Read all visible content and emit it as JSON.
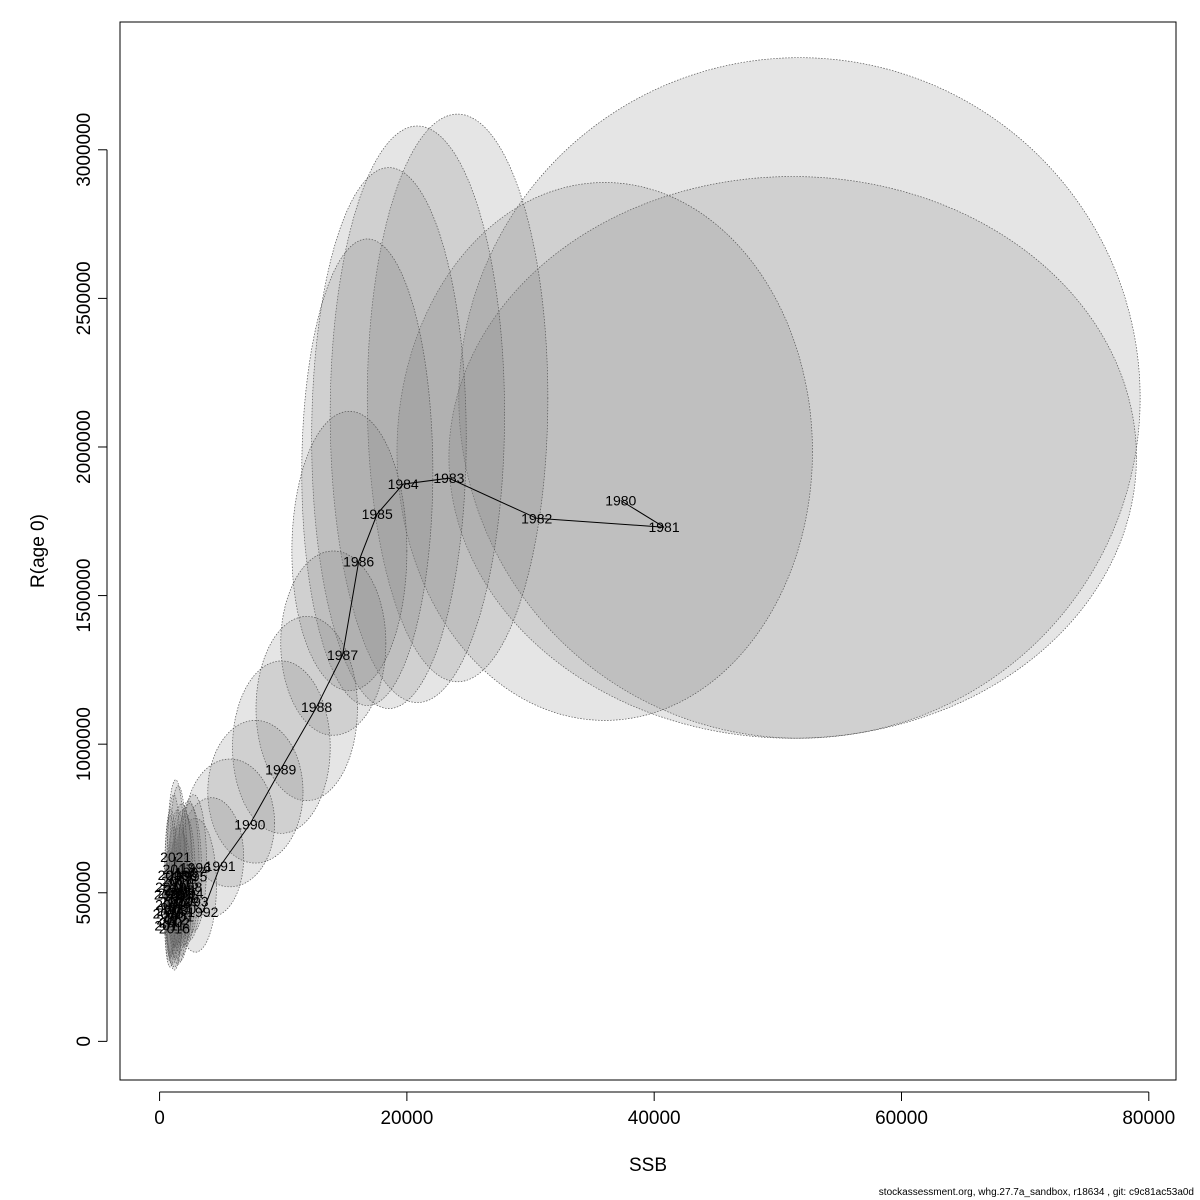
{
  "footer": "stockassessment.org, whg.27.7a_sandbox, r18634 , git: c9c81ac53a0d",
  "chart_data": {
    "type": "scatter",
    "title": "",
    "xlabel": "SSB",
    "ylabel": "R(age 0)",
    "xlim": [
      -3200,
      82200
    ],
    "ylim": [
      -130000,
      3430000
    ],
    "xticks": [
      0,
      20000,
      40000,
      60000,
      80000
    ],
    "yticks": [
      0,
      500000,
      1000000,
      1500000,
      2000000,
      2500000,
      3000000
    ],
    "x_tick_labels": [
      "0",
      "20000",
      "40000",
      "60000",
      "80000"
    ],
    "y_tick_labels": [
      "0",
      "500000",
      "1000000",
      "1500000",
      "2000000",
      "2500000",
      "3000000"
    ],
    "grid": false,
    "legend": "none",
    "colors": {
      "labels": "#ff0000",
      "line": "#000000",
      "ellipse_fill": "#7f7f7f",
      "ellipse_stroke": "#555555"
    },
    "points": [
      {
        "label": "1980",
        "x": 37300,
        "y": 1820000
      },
      {
        "label": "1981",
        "x": 40800,
        "y": 1730000
      },
      {
        "label": "1982",
        "x": 30500,
        "y": 1760000
      },
      {
        "label": "1983",
        "x": 23400,
        "y": 1895000
      },
      {
        "label": "1984",
        "x": 19700,
        "y": 1875000
      },
      {
        "label": "1985",
        "x": 17600,
        "y": 1775000
      },
      {
        "label": "1986",
        "x": 16100,
        "y": 1615000
      },
      {
        "label": "1987",
        "x": 14800,
        "y": 1300000
      },
      {
        "label": "1988",
        "x": 12700,
        "y": 1125000
      },
      {
        "label": "1989",
        "x": 9800,
        "y": 915000
      },
      {
        "label": "1990",
        "x": 7300,
        "y": 730000
      },
      {
        "label": "1991",
        "x": 4900,
        "y": 590000
      },
      {
        "label": "1992",
        "x": 3500,
        "y": 435000
      },
      {
        "label": "1993",
        "x": 2700,
        "y": 470000
      },
      {
        "label": "1994",
        "x": 2300,
        "y": 500000
      },
      {
        "label": "1995",
        "x": 2600,
        "y": 555000
      },
      {
        "label": "1996",
        "x": 2900,
        "y": 585000
      },
      {
        "label": "1997",
        "x": 2500,
        "y": 570000
      },
      {
        "label": "1998",
        "x": 2200,
        "y": 520000
      },
      {
        "label": "1999",
        "x": 1900,
        "y": 480000
      },
      {
        "label": "2000",
        "x": 1700,
        "y": 445000
      },
      {
        "label": "2001",
        "x": 1500,
        "y": 420000
      },
      {
        "label": "2002",
        "x": 1200,
        "y": 400000
      },
      {
        "label": "2003",
        "x": 1000,
        "y": 440000
      },
      {
        "label": "2004",
        "x": 1300,
        "y": 470000
      },
      {
        "label": "2005",
        "x": 1600,
        "y": 510000
      },
      {
        "label": "2006",
        "x": 1800,
        "y": 560000
      },
      {
        "label": "2007",
        "x": 1400,
        "y": 540000
      },
      {
        "label": "2008",
        "x": 1100,
        "y": 500000
      },
      {
        "label": "2009",
        "x": 900,
        "y": 460000
      },
      {
        "label": "2010",
        "x": 700,
        "y": 430000
      },
      {
        "label": "2011",
        "x": 800,
        "y": 390000
      },
      {
        "label": "2012",
        "x": 1000,
        "y": 410000
      },
      {
        "label": "2013",
        "x": 1300,
        "y": 450000
      },
      {
        "label": "2014",
        "x": 1600,
        "y": 490000
      },
      {
        "label": "2015",
        "x": 1900,
        "y": 530000
      },
      {
        "label": "2016",
        "x": 1200,
        "y": 380000
      },
      {
        "label": "2017",
        "x": 1500,
        "y": 580000
      },
      {
        "label": "2018",
        "x": 1100,
        "y": 560000
      },
      {
        "label": "2019",
        "x": 900,
        "y": 520000
      },
      {
        "label": "2020",
        "x": 800,
        "y": 495000
      },
      {
        "label": "2021",
        "x": 1300,
        "y": 620000
      }
    ],
    "confidence_ellipses": [
      {
        "year": "1980",
        "x_min": 24200,
        "x_max": 79300,
        "y_min": 1020000,
        "y_max": 3310000
      },
      {
        "year": "1981",
        "x_min": 23400,
        "x_max": 79000,
        "y_min": 1020000,
        "y_max": 2910000
      },
      {
        "year": "1982",
        "x_min": 19200,
        "x_max": 52800,
        "y_min": 1080000,
        "y_max": 2890000
      },
      {
        "year": "1983",
        "x_min": 16800,
        "x_max": 31400,
        "y_min": 1210000,
        "y_max": 3120000
      },
      {
        "year": "1984",
        "x_min": 13800,
        "x_max": 27900,
        "y_min": 1140000,
        "y_max": 3080000
      },
      {
        "year": "1985",
        "x_min": 12300,
        "x_max": 24800,
        "y_min": 1120000,
        "y_max": 2940000
      },
      {
        "year": "1986",
        "x_min": 11500,
        "x_max": 22100,
        "y_min": 1130000,
        "y_max": 2700000
      },
      {
        "year": "1987",
        "x_min": 10700,
        "x_max": 20000,
        "y_min": 1180000,
        "y_max": 2120000
      },
      {
        "year": "1988",
        "x_min": 9800,
        "x_max": 18300,
        "y_min": 1030000,
        "y_max": 1650000
      },
      {
        "year": "1989",
        "x_min": 7800,
        "x_max": 16000,
        "y_min": 810000,
        "y_max": 1430000
      },
      {
        "year": "1990",
        "x_min": 5900,
        "x_max": 13800,
        "y_min": 700000,
        "y_max": 1280000
      },
      {
        "year": "1991",
        "x_min": 3900,
        "x_max": 11600,
        "y_min": 600000,
        "y_max": 1080000
      },
      {
        "year": "1992",
        "x_min": 2100,
        "x_max": 9300,
        "y_min": 520000,
        "y_max": 950000
      },
      {
        "year": "1993",
        "x_min": 1600,
        "x_max": 6800,
        "y_min": 420000,
        "y_max": 820000
      },
      {
        "year": "1994",
        "x_min": 1200,
        "x_max": 4600,
        "y_min": 300000,
        "y_max": 750000
      },
      {
        "year": "1995",
        "x_min": 1400,
        "x_max": 3400,
        "y_min": 340000,
        "y_max": 800000
      },
      {
        "year": "1996",
        "x_min": 1700,
        "x_max": 3800,
        "y_min": 370000,
        "y_max": 830000
      },
      {
        "year": "1997",
        "x_min": 1500,
        "x_max": 3200,
        "y_min": 350000,
        "y_max": 810000
      },
      {
        "year": "1998",
        "x_min": 1300,
        "x_max": 2900,
        "y_min": 320000,
        "y_max": 760000
      },
      {
        "year": "1999",
        "x_min": 1000,
        "x_max": 2600,
        "y_min": 290000,
        "y_max": 700000
      },
      {
        "year": "2000",
        "x_min": 900,
        "x_max": 2400,
        "y_min": 270000,
        "y_max": 660000
      },
      {
        "year": "2001",
        "x_min": 800,
        "x_max": 2200,
        "y_min": 260000,
        "y_max": 640000
      },
      {
        "year": "2002",
        "x_min": 600,
        "x_max": 1800,
        "y_min": 250000,
        "y_max": 600000
      },
      {
        "year": "2003",
        "x_min": 500,
        "x_max": 1600,
        "y_min": 280000,
        "y_max": 640000
      },
      {
        "year": "2004",
        "x_min": 700,
        "x_max": 1900,
        "y_min": 300000,
        "y_max": 680000
      },
      {
        "year": "2005",
        "x_min": 900,
        "x_max": 2300,
        "y_min": 320000,
        "y_max": 730000
      },
      {
        "year": "2006",
        "x_min": 1000,
        "x_max": 2600,
        "y_min": 350000,
        "y_max": 800000
      },
      {
        "year": "2007",
        "x_min": 800,
        "x_max": 2100,
        "y_min": 340000,
        "y_max": 780000
      },
      {
        "year": "2008",
        "x_min": 600,
        "x_max": 1700,
        "y_min": 320000,
        "y_max": 720000
      },
      {
        "year": "2009",
        "x_min": 500,
        "x_max": 1400,
        "y_min": 290000,
        "y_max": 670000
      },
      {
        "year": "2010",
        "x_min": 400,
        "x_max": 1100,
        "y_min": 270000,
        "y_max": 640000
      },
      {
        "year": "2011",
        "x_min": 400,
        "x_max": 1300,
        "y_min": 250000,
        "y_max": 590000
      },
      {
        "year": "2012",
        "x_min": 500,
        "x_max": 1600,
        "y_min": 260000,
        "y_max": 620000
      },
      {
        "year": "2013",
        "x_min": 700,
        "x_max": 1900,
        "y_min": 280000,
        "y_max": 670000
      },
      {
        "year": "2014",
        "x_min": 900,
        "x_max": 2300,
        "y_min": 300000,
        "y_max": 720000
      },
      {
        "year": "2015",
        "x_min": 1100,
        "x_max": 2700,
        "y_min": 320000,
        "y_max": 780000
      },
      {
        "year": "2016",
        "x_min": 600,
        "x_max": 1800,
        "y_min": 240000,
        "y_max": 580000
      },
      {
        "year": "2017",
        "x_min": 800,
        "x_max": 2200,
        "y_min": 330000,
        "y_max": 860000
      },
      {
        "year": "2018",
        "x_min": 600,
        "x_max": 1700,
        "y_min": 320000,
        "y_max": 830000
      },
      {
        "year": "2019",
        "x_min": 400,
        "x_max": 1400,
        "y_min": 300000,
        "y_max": 780000
      },
      {
        "year": "2020",
        "x_min": 400,
        "x_max": 1300,
        "y_min": 280000,
        "y_max": 760000
      },
      {
        "year": "2021",
        "x_min": 600,
        "x_max": 2000,
        "y_min": 320000,
        "y_max": 880000
      }
    ]
  }
}
